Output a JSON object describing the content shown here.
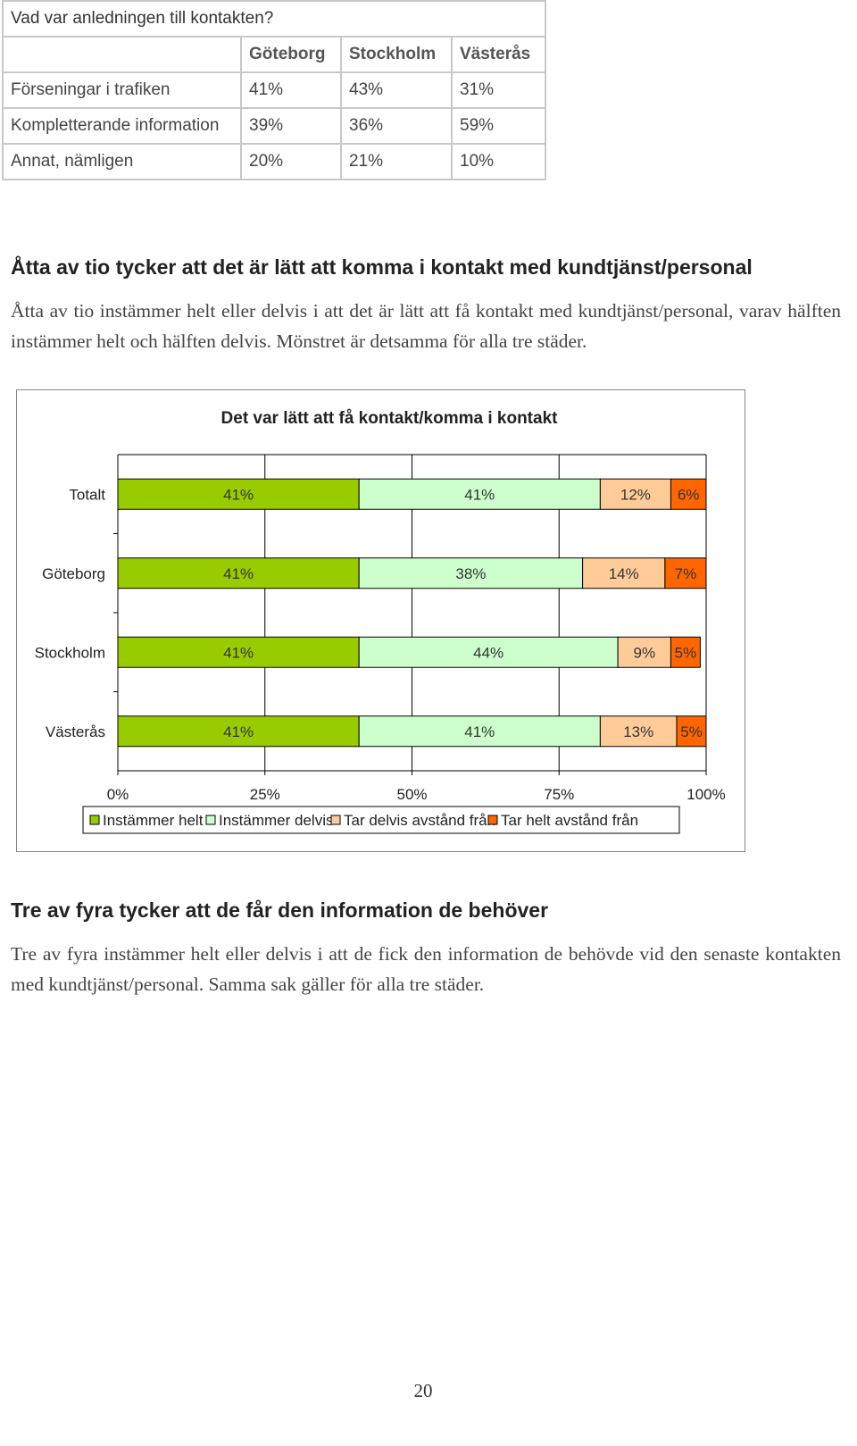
{
  "table": {
    "question": "Vad var anledningen till kontakten?",
    "columns": [
      "Göteborg",
      "Stockholm",
      "Västerås"
    ],
    "rows": [
      {
        "label": "Förseningar i trafiken",
        "values": [
          "41%",
          "43%",
          "31%"
        ]
      },
      {
        "label": "Kompletterande information",
        "values": [
          "39%",
          "36%",
          "59%"
        ]
      },
      {
        "label": "Annat, nämligen",
        "values": [
          "20%",
          "21%",
          "10%"
        ]
      }
    ]
  },
  "section1": {
    "heading": "Åtta av tio tycker att det är lätt att komma i kontakt med kundtjänst/personal",
    "paragraph": "Åtta av tio instämmer helt eller delvis i att det är lätt att få kontakt med kundtjänst/personal, varav hälften instämmer helt och hälften delvis. Mönstret är detsamma för alla tre städer."
  },
  "chart_data": {
    "type": "bar",
    "orientation": "horizontal",
    "stacked": true,
    "percent": true,
    "title": "Det var lätt att få kontakt/komma i kontakt",
    "categories": [
      "Totalt",
      "Göteborg",
      "Stockholm",
      "Västerås"
    ],
    "series": [
      {
        "name": "Instämmer helt",
        "color": "#99cc00",
        "values": [
          41,
          41,
          41,
          41
        ]
      },
      {
        "name": "Instämmer delvis",
        "color": "#ccffcc",
        "values": [
          41,
          38,
          44,
          41
        ]
      },
      {
        "name": "Tar delvis avstånd från",
        "color": "#ffcc99",
        "values": [
          12,
          14,
          9,
          13
        ]
      },
      {
        "name": "Tar helt avstånd från",
        "color": "#ff6600",
        "values": [
          6,
          7,
          5,
          5
        ]
      }
    ],
    "xlim": [
      0,
      100
    ],
    "xticks": [
      "0%",
      "25%",
      "50%",
      "75%",
      "100%"
    ],
    "grid": true,
    "legend_position": "bottom"
  },
  "section2": {
    "heading": "Tre av fyra tycker att de får den information de behöver",
    "paragraph": "Tre av fyra instämmer helt eller delvis i att de fick den information de behövde vid den senaste kontakten med kundtjänst/personal. Samma sak gäller för alla tre städer."
  },
  "page_number": "20"
}
